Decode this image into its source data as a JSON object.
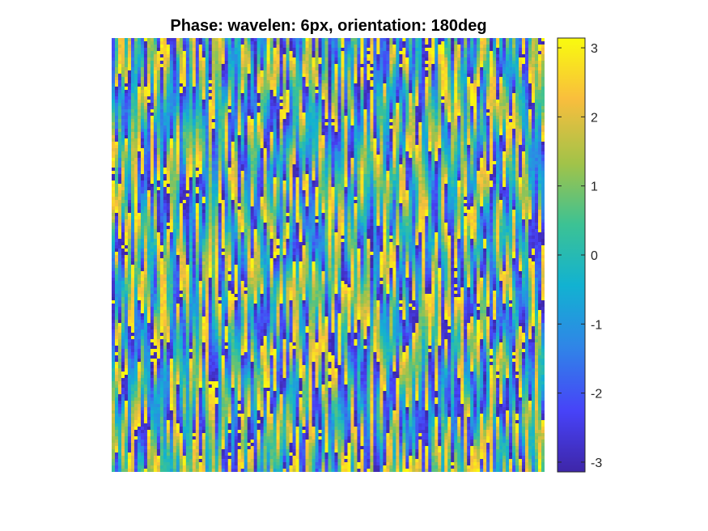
{
  "chart_data": {
    "type": "heatmap",
    "title": "Phase: wavelen: 6px, orientation: 180deg",
    "xlabel": "",
    "ylabel": "",
    "grid": false,
    "axes_visible": false,
    "colormap": "parula",
    "colorbar": {
      "position": "right",
      "ticks": [
        3,
        2,
        1,
        0,
        -1,
        -2,
        -3
      ],
      "tick_labels": [
        "3",
        "2",
        "1",
        "0",
        "-1",
        "-2",
        "-3"
      ],
      "clim": [
        -3.1416,
        3.1416
      ]
    },
    "value_range": [
      -3.1416,
      3.1416
    ],
    "pattern": "phase map with dense vertical bands, wrapping from -pi to pi"
  },
  "colors": {
    "colormap_stops": [
      "#3e26a8",
      "#4743f8",
      "#2f86e7",
      "#12b2d1",
      "#3cc294",
      "#a1c349",
      "#f9be3d",
      "#f9fb0e"
    ]
  }
}
